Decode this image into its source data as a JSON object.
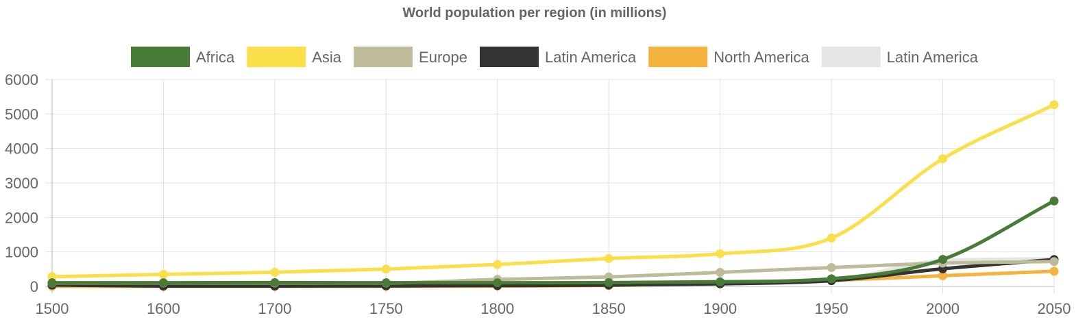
{
  "chart_data": {
    "type": "line",
    "title": "World population per region (in millions)",
    "x": [
      1500,
      1600,
      1700,
      1750,
      1800,
      1850,
      1900,
      1950,
      2000,
      2050
    ],
    "x_ticks": [
      "1500",
      "1600",
      "1700",
      "1750",
      "1800",
      "1850",
      "1900",
      "1950",
      "2000",
      "2050"
    ],
    "ylim": [
      0,
      6000
    ],
    "y_ticks": [
      0,
      1000,
      2000,
      3000,
      4000,
      5000,
      6000
    ],
    "grid": true,
    "legend_position": "top",
    "series": [
      {
        "name": "Latin America",
        "color": "#e4e6e4",
        "values": [
          40,
          40,
          50,
          50,
          60,
          80,
          150,
          200,
          750,
          800
        ],
        "markers": false
      },
      {
        "name": "North America",
        "color": "#f4b33e",
        "values": [
          3,
          3,
          2,
          2,
          7,
          26,
          82,
          172,
          310,
          440
        ],
        "markers": true
      },
      {
        "name": "Latin America",
        "color": "#333333",
        "values": [
          40,
          10,
          10,
          16,
          24,
          38,
          74,
          167,
          511,
          780
        ],
        "markers": true
      },
      {
        "name": "Europe",
        "color": "#bdbb99",
        "values": [
          100,
          100,
          100,
          100,
          203,
          276,
          408,
          547,
          675,
          720
        ],
        "markers": true
      },
      {
        "name": "Asia",
        "color": "#fadf4b",
        "values": [
          282,
          350,
          411,
          502,
          635,
          809,
          947,
          1402,
          3700,
          5267
        ],
        "markers": true
      },
      {
        "name": "Africa",
        "color": "#487c36",
        "values": [
          106,
          107,
          111,
          106,
          107,
          111,
          133,
          221,
          783,
          2478
        ],
        "markers": true
      }
    ],
    "legend_order": [
      5,
      4,
      3,
      2,
      1,
      0
    ]
  }
}
